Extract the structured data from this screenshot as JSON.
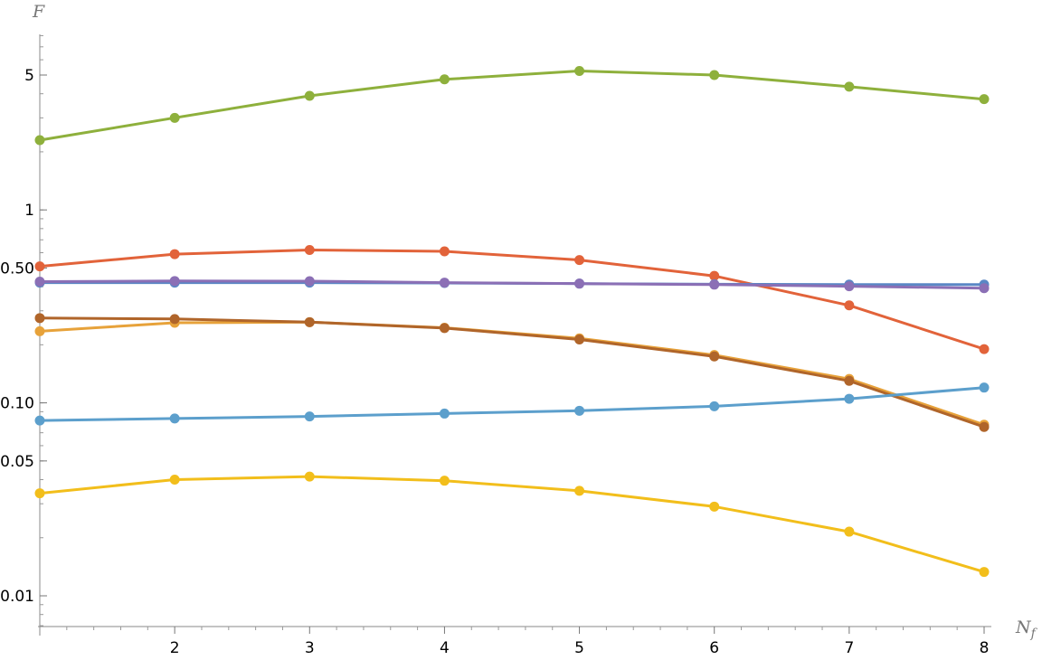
{
  "chart_data": {
    "type": "line",
    "yscale": "log",
    "xlabel_main": "N",
    "xlabel_sub": "f",
    "ylabel": "F",
    "xlim": [
      1,
      8
    ],
    "ylim": [
      0.005,
      9
    ],
    "x_ticks": [
      2,
      3,
      4,
      5,
      6,
      7,
      8
    ],
    "x_tick_labels": [
      "2",
      "3",
      "4",
      "5",
      "6",
      "7",
      "8"
    ],
    "y_ticks": [
      0.01,
      0.05,
      0.1,
      0.5,
      1,
      5
    ],
    "y_tick_labels": [
      "0.01",
      "0.05",
      "0.10",
      "0.50",
      "1",
      "5"
    ],
    "grid": false,
    "legend": "none",
    "x": [
      1,
      2,
      3,
      4,
      5,
      6,
      7,
      8
    ],
    "series": [
      {
        "color": "#8EB03C",
        "values": [
          2.3,
          3.0,
          3.9,
          4.75,
          5.25,
          5.0,
          4.35,
          3.75
        ]
      },
      {
        "color": "#E2633A",
        "values": [
          0.51,
          0.59,
          0.62,
          0.61,
          0.55,
          0.455,
          0.32,
          0.19
        ]
      },
      {
        "color": "#5A87C5",
        "values": [
          0.42,
          0.42,
          0.42,
          0.418,
          0.415,
          0.412,
          0.41,
          0.41
        ]
      },
      {
        "color": "#8B6FB5",
        "values": [
          0.425,
          0.428,
          0.427,
          0.42,
          0.415,
          0.41,
          0.402,
          0.393
        ]
      },
      {
        "color": "#E7A23A",
        "values": [
          0.235,
          0.26,
          0.262,
          0.245,
          0.216,
          0.177,
          0.133,
          0.077
        ]
      },
      {
        "color": "#B0652A",
        "values": [
          0.275,
          0.272,
          0.262,
          0.244,
          0.213,
          0.174,
          0.13,
          0.075
        ]
      },
      {
        "color": "#5C9FCC",
        "values": [
          0.081,
          0.083,
          0.085,
          0.088,
          0.091,
          0.096,
          0.105,
          0.12
        ]
      },
      {
        "color": "#F2BE1B",
        "values": [
          0.034,
          0.04,
          0.0415,
          0.0395,
          0.035,
          0.029,
          0.0215,
          0.0133
        ]
      }
    ]
  }
}
